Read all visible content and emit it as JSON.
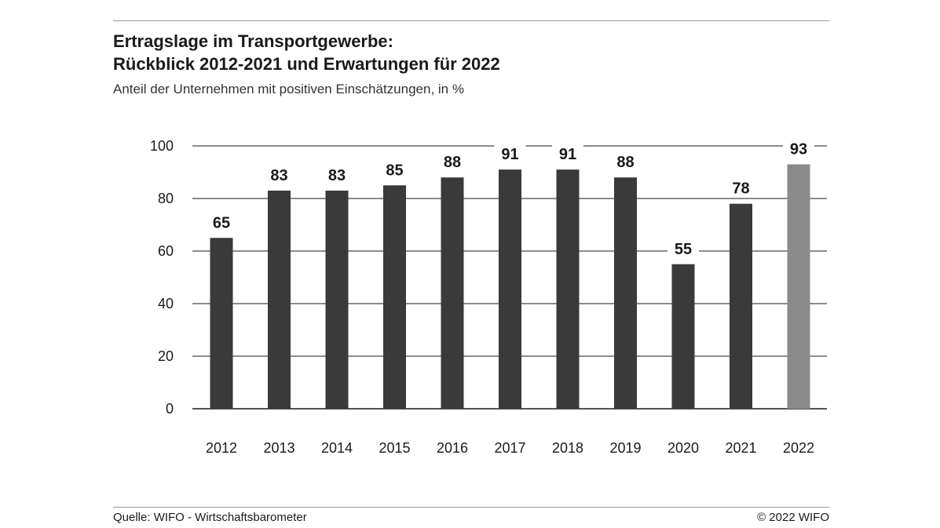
{
  "header": {
    "title_line1": "Ertragslage im Transportgewerbe:",
    "title_line2": "Rückblick 2012-2021 und Erwartungen für 2022",
    "subtitle": "Anteil der Unternehmen mit positiven Einschätzungen, in %"
  },
  "footer": {
    "source": "Quelle: WIFO - Wirtschaftsbarometer",
    "copyright": "© 2022 WIFO"
  },
  "colors": {
    "bar": "#3a3a3a",
    "bar_forecast": "#8a8a8a",
    "grid": "#1a1a1a"
  },
  "chart_data": {
    "type": "bar",
    "title": "Ertragslage im Transportgewerbe: Rückblick 2012-2021 und Erwartungen für 2022",
    "subtitle": "Anteil der Unternehmen mit positiven Einschätzungen, in %",
    "xlabel": "",
    "ylabel": "",
    "categories": [
      "2012",
      "2013",
      "2014",
      "2015",
      "2016",
      "2017",
      "2018",
      "2019",
      "2020",
      "2021",
      "2022"
    ],
    "values": [
      65,
      83,
      83,
      85,
      88,
      91,
      91,
      88,
      55,
      78,
      93
    ],
    "forecast_category": "2022",
    "ylim": [
      0,
      100
    ],
    "yticks": [
      0,
      20,
      40,
      60,
      80,
      100
    ],
    "grid": true,
    "legend": "none"
  }
}
